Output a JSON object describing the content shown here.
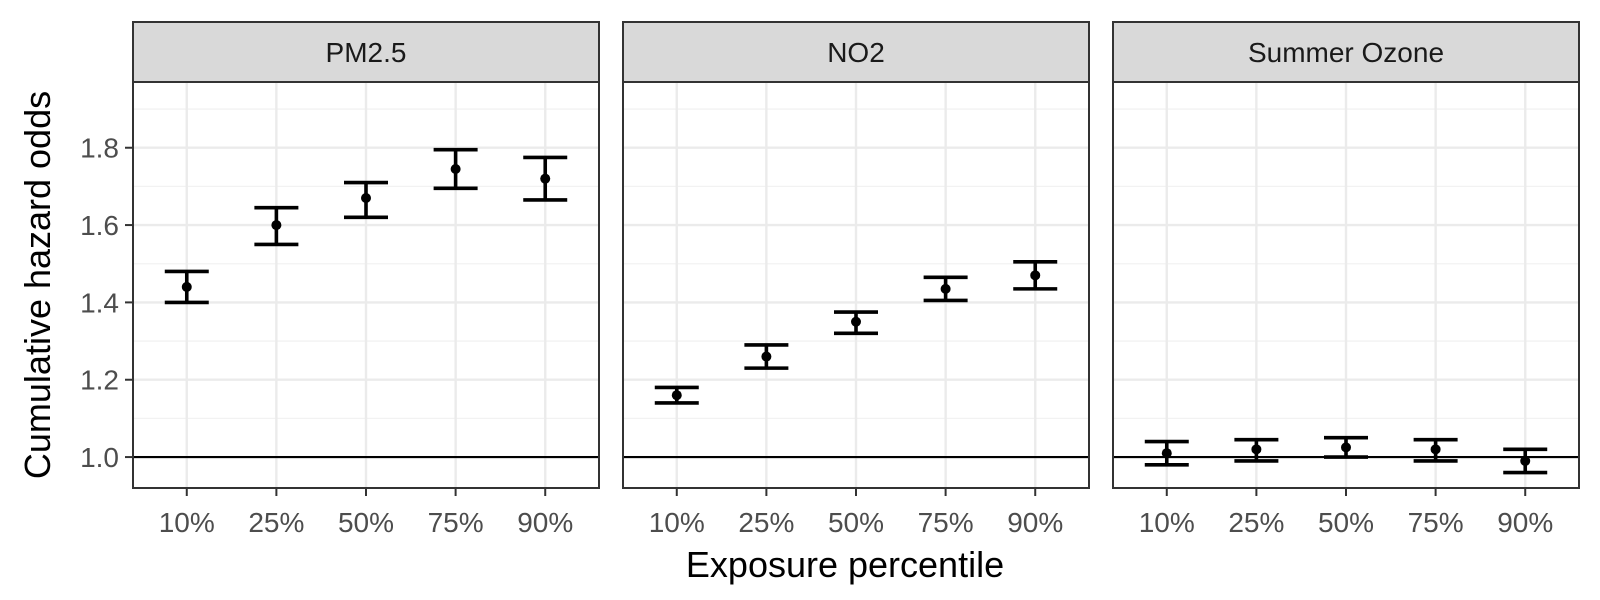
{
  "chart_data": {
    "type": "errorbar",
    "xlabel": "Exposure percentile",
    "ylabel": "Cumulative hazard odds",
    "ylim": [
      0.92,
      1.97
    ],
    "yticks": [
      1.0,
      1.2,
      1.4,
      1.6,
      1.8
    ],
    "ytick_labels": [
      "1.0",
      "1.2",
      "1.4",
      "1.6",
      "1.8"
    ],
    "reference_line": 1.0,
    "categories": [
      "10%",
      "25%",
      "50%",
      "75%",
      "90%"
    ],
    "grid": true,
    "legend": "none",
    "colors": {
      "panel_border": "#333333",
      "strip_fill": "#d9d9d9",
      "grid_major": "#ebebeb",
      "grid_minor": "#f2f2f2",
      "marks": "#000000",
      "tick_text": "#4d4d4d"
    },
    "panels": [
      {
        "name": "PM2.5",
        "estimate": [
          1.44,
          1.6,
          1.67,
          1.745,
          1.72
        ],
        "lower": [
          1.4,
          1.55,
          1.62,
          1.695,
          1.665
        ],
        "upper": [
          1.48,
          1.645,
          1.71,
          1.795,
          1.775
        ]
      },
      {
        "name": "NO2",
        "estimate": [
          1.16,
          1.26,
          1.35,
          1.435,
          1.47
        ],
        "lower": [
          1.14,
          1.23,
          1.32,
          1.405,
          1.435
        ],
        "upper": [
          1.18,
          1.29,
          1.375,
          1.465,
          1.505
        ]
      },
      {
        "name": "Summer Ozone",
        "estimate": [
          1.01,
          1.02,
          1.025,
          1.02,
          0.99
        ],
        "lower": [
          0.98,
          0.99,
          1.0,
          0.99,
          0.96
        ],
        "upper": [
          1.04,
          1.045,
          1.05,
          1.045,
          1.02
        ]
      }
    ]
  }
}
